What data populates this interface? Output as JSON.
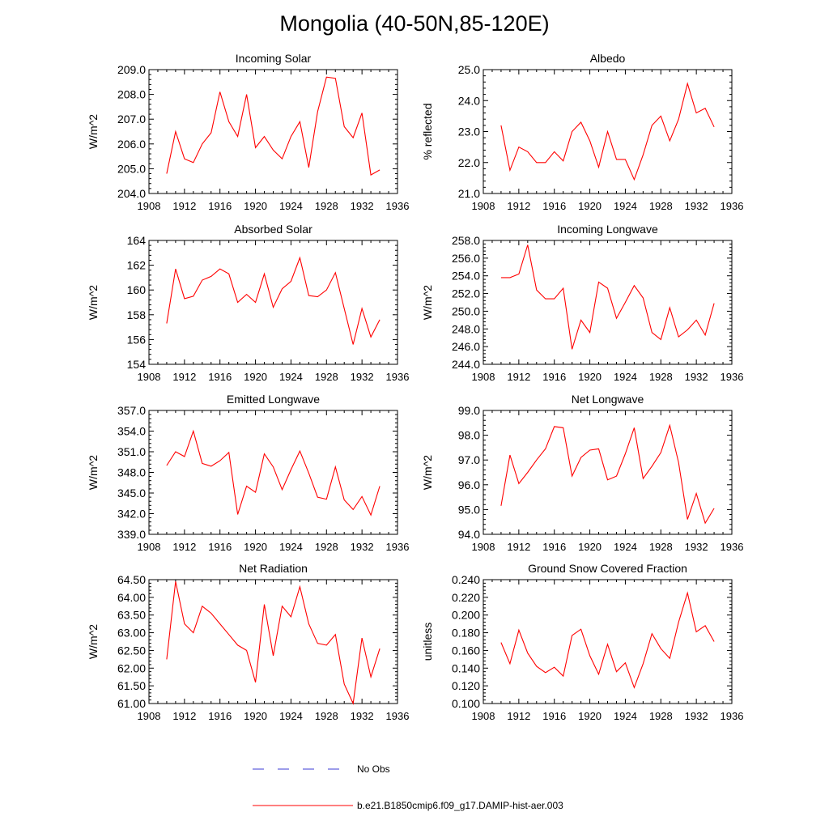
{
  "title": "Mongolia (40-50N,85-120E)",
  "colors": {
    "series": "#ff0000",
    "no_obs": "#3b3bd6",
    "axis": "#000000"
  },
  "legend": [
    {
      "label": "No Obs",
      "style": "dashed",
      "color": "#3b3bd6"
    },
    {
      "label": "b.e21.B1850cmip6.f09_g17.DAMIP-hist-aer.003",
      "style": "solid",
      "color": "#ff0000"
    }
  ],
  "chart_data": [
    {
      "type": "line",
      "title": "Incoming Solar",
      "ylabel": "W/m^2",
      "xlim": [
        1908,
        1936
      ],
      "xticks": [
        "1908",
        "1912",
        "1916",
        "1920",
        "1924",
        "1928",
        "1932",
        "1936"
      ],
      "ylim": [
        204,
        209
      ],
      "yticks": [
        "204.0",
        "205.0",
        "206.0",
        "207.0",
        "208.0",
        "209.0"
      ],
      "series": [
        {
          "x": [
            1910,
            1911,
            1912,
            1913,
            1914,
            1915,
            1916,
            1917,
            1918,
            1919,
            1920,
            1921,
            1922,
            1923,
            1924,
            1925,
            1926,
            1927,
            1928,
            1929,
            1930,
            1931,
            1932,
            1933,
            1934
          ],
          "values": [
            204.8,
            206.5,
            205.4,
            205.25,
            206.0,
            206.45,
            208.1,
            206.9,
            206.3,
            208.0,
            205.85,
            206.3,
            205.75,
            205.4,
            206.3,
            206.9,
            205.05,
            207.3,
            208.7,
            208.65,
            206.7,
            206.25,
            207.25,
            204.75,
            204.95
          ]
        }
      ]
    },
    {
      "type": "line",
      "title": "Albedo",
      "ylabel": "% reflected",
      "xlim": [
        1908,
        1936
      ],
      "xticks": [
        "1908",
        "1912",
        "1916",
        "1920",
        "1924",
        "1928",
        "1932",
        "1936"
      ],
      "ylim": [
        21,
        25
      ],
      "yticks": [
        "21.0",
        "22.0",
        "23.0",
        "24.0",
        "25.0"
      ],
      "series": [
        {
          "x": [
            1910,
            1911,
            1912,
            1913,
            1914,
            1915,
            1916,
            1917,
            1918,
            1919,
            1920,
            1921,
            1922,
            1923,
            1924,
            1925,
            1926,
            1927,
            1928,
            1929,
            1930,
            1931,
            1932,
            1933,
            1934
          ],
          "values": [
            23.2,
            21.75,
            22.5,
            22.35,
            22.0,
            22.0,
            22.35,
            22.05,
            23.0,
            23.3,
            22.7,
            21.85,
            23.0,
            22.1,
            22.1,
            21.45,
            22.25,
            23.2,
            23.5,
            22.7,
            23.4,
            24.55,
            23.6,
            23.75,
            23.15
          ]
        }
      ]
    },
    {
      "type": "line",
      "title": "Absorbed Solar",
      "ylabel": "W/m^2",
      "xlim": [
        1908,
        1936
      ],
      "xticks": [
        "1908",
        "1912",
        "1916",
        "1920",
        "1924",
        "1928",
        "1932",
        "1936"
      ],
      "ylim": [
        154,
        164
      ],
      "yticks": [
        "154",
        "156",
        "158",
        "160",
        "162",
        "164"
      ],
      "series": [
        {
          "x": [
            1910,
            1911,
            1912,
            1913,
            1914,
            1915,
            1916,
            1917,
            1918,
            1919,
            1920,
            1921,
            1922,
            1923,
            1924,
            1925,
            1926,
            1927,
            1928,
            1929,
            1930,
            1931,
            1932,
            1933,
            1934
          ],
          "values": [
            157.3,
            161.7,
            159.3,
            159.5,
            160.8,
            161.1,
            161.7,
            161.3,
            159.0,
            159.65,
            159.0,
            161.3,
            158.6,
            160.1,
            160.7,
            162.6,
            159.55,
            159.45,
            160.0,
            161.4,
            158.5,
            155.6,
            158.5,
            156.2,
            157.6
          ]
        }
      ]
    },
    {
      "type": "line",
      "title": "Incoming Longwave",
      "ylabel": "W/m^2",
      "xlim": [
        1908,
        1936
      ],
      "xticks": [
        "1908",
        "1912",
        "1916",
        "1920",
        "1924",
        "1928",
        "1932",
        "1936"
      ],
      "ylim": [
        244,
        258
      ],
      "yticks": [
        "244.0",
        "246.0",
        "248.0",
        "250.0",
        "252.0",
        "254.0",
        "256.0",
        "258.0"
      ],
      "series": [
        {
          "x": [
            1910,
            1911,
            1912,
            1913,
            1914,
            1915,
            1916,
            1917,
            1918,
            1919,
            1920,
            1921,
            1922,
            1923,
            1924,
            1925,
            1926,
            1927,
            1928,
            1929,
            1930,
            1931,
            1932,
            1933,
            1934
          ],
          "values": [
            253.8,
            253.8,
            254.2,
            257.5,
            252.4,
            251.4,
            251.4,
            252.6,
            245.7,
            249.0,
            247.6,
            253.3,
            252.6,
            249.2,
            251.0,
            252.9,
            251.5,
            247.6,
            246.8,
            250.4,
            247.1,
            247.9,
            249.0,
            247.3,
            250.9
          ]
        }
      ]
    },
    {
      "type": "line",
      "title": "Emitted Longwave",
      "ylabel": "W/m^2",
      "xlim": [
        1908,
        1936
      ],
      "xticks": [
        "1908",
        "1912",
        "1916",
        "1920",
        "1924",
        "1928",
        "1932",
        "1936"
      ],
      "ylim": [
        339,
        357
      ],
      "yticks": [
        "339.0",
        "342.0",
        "345.0",
        "348.0",
        "351.0",
        "354.0",
        "357.0"
      ],
      "series": [
        {
          "x": [
            1910,
            1911,
            1912,
            1913,
            1914,
            1915,
            1916,
            1917,
            1918,
            1919,
            1920,
            1921,
            1922,
            1923,
            1924,
            1925,
            1926,
            1927,
            1928,
            1929,
            1930,
            1931,
            1932,
            1933,
            1934
          ],
          "values": [
            349.0,
            351.0,
            350.3,
            354.0,
            349.3,
            348.9,
            349.7,
            350.9,
            341.9,
            346.0,
            345.1,
            350.7,
            348.8,
            345.5,
            348.4,
            351.1,
            347.9,
            344.4,
            344.1,
            348.8,
            344.0,
            342.6,
            344.5,
            341.8,
            346.0
          ]
        }
      ]
    },
    {
      "type": "line",
      "title": "Net Longwave",
      "ylabel": "W/m^2",
      "xlim": [
        1908,
        1936
      ],
      "xticks": [
        "1908",
        "1912",
        "1916",
        "1920",
        "1924",
        "1928",
        "1932",
        "1936"
      ],
      "ylim": [
        94,
        99
      ],
      "yticks": [
        "94.0",
        "95.0",
        "96.0",
        "97.0",
        "98.0",
        "99.0"
      ],
      "series": [
        {
          "x": [
            1910,
            1911,
            1912,
            1913,
            1914,
            1915,
            1916,
            1917,
            1918,
            1919,
            1920,
            1921,
            1922,
            1923,
            1924,
            1925,
            1926,
            1927,
            1928,
            1929,
            1930,
            1931,
            1932,
            1933,
            1934
          ],
          "values": [
            95.15,
            97.2,
            96.05,
            96.5,
            97.0,
            97.45,
            98.35,
            98.3,
            96.35,
            97.1,
            97.4,
            97.45,
            96.2,
            96.35,
            97.25,
            98.3,
            96.25,
            96.75,
            97.3,
            98.4,
            96.9,
            94.6,
            95.65,
            94.45,
            95.05
          ]
        }
      ]
    },
    {
      "type": "line",
      "title": "Net Radiation",
      "ylabel": "W/m^2",
      "xlim": [
        1908,
        1936
      ],
      "xticks": [
        "1908",
        "1912",
        "1916",
        "1920",
        "1924",
        "1928",
        "1932",
        "1936"
      ],
      "ylim": [
        61,
        64.5
      ],
      "yticks": [
        "61.00",
        "61.50",
        "62.00",
        "62.50",
        "63.00",
        "63.50",
        "64.00",
        "64.50"
      ],
      "series": [
        {
          "x": [
            1910,
            1911,
            1912,
            1913,
            1914,
            1915,
            1916,
            1917,
            1918,
            1919,
            1920,
            1921,
            1922,
            1923,
            1924,
            1925,
            1926,
            1927,
            1928,
            1929,
            1930,
            1931,
            1932,
            1933,
            1934
          ],
          "values": [
            62.25,
            64.45,
            63.25,
            63.0,
            63.75,
            63.55,
            63.25,
            62.95,
            62.65,
            62.5,
            61.6,
            63.8,
            62.35,
            63.75,
            63.45,
            64.3,
            63.25,
            62.7,
            62.65,
            62.95,
            61.55,
            61.0,
            62.85,
            61.75,
            62.55
          ]
        }
      ]
    },
    {
      "type": "line",
      "title": "Ground Snow Covered Fraction",
      "ylabel": "unitless",
      "xlim": [
        1908,
        1936
      ],
      "xticks": [
        "1908",
        "1912",
        "1916",
        "1920",
        "1924",
        "1928",
        "1932",
        "1936"
      ],
      "ylim": [
        0.1,
        0.24
      ],
      "yticks": [
        "0.100",
        "0.120",
        "0.140",
        "0.160",
        "0.180",
        "0.200",
        "0.220",
        "0.240"
      ],
      "series": [
        {
          "x": [
            1910,
            1911,
            1912,
            1913,
            1914,
            1915,
            1916,
            1917,
            1918,
            1919,
            1920,
            1921,
            1922,
            1923,
            1924,
            1925,
            1926,
            1927,
            1928,
            1929,
            1930,
            1931,
            1932,
            1933,
            1934
          ],
          "values": [
            0.169,
            0.145,
            0.183,
            0.157,
            0.142,
            0.135,
            0.141,
            0.131,
            0.177,
            0.184,
            0.154,
            0.133,
            0.167,
            0.136,
            0.146,
            0.118,
            0.145,
            0.179,
            0.162,
            0.151,
            0.192,
            0.225,
            0.181,
            0.188,
            0.17
          ]
        }
      ]
    }
  ]
}
